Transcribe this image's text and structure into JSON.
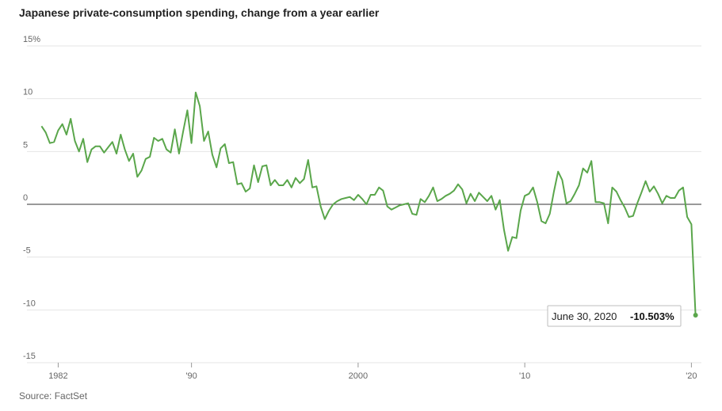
{
  "title": "Japanese private-consumption spending, change from a year earlier",
  "source": "Source: FactSet",
  "colors": {
    "line": "#5aa64b",
    "grid": "#e5e5e5",
    "zero": "#333333"
  },
  "tooltip": {
    "date": "June 30, 2020",
    "value": "-10.503%"
  },
  "chart_data": {
    "type": "line",
    "title": "Japanese private-consumption spending, change from a year earlier",
    "ylim": [
      -15,
      15
    ],
    "xlim": [
      1980.6,
      2020.6
    ],
    "y_ticks": [
      {
        "value": 15,
        "label": "15%"
      },
      {
        "value": 10,
        "label": "10"
      },
      {
        "value": 5,
        "label": "5"
      },
      {
        "value": 0,
        "label": "0"
      },
      {
        "value": -5,
        "label": "-5"
      },
      {
        "value": -10,
        "label": "-10"
      },
      {
        "value": -15,
        "label": "-15"
      }
    ],
    "x_ticks": [
      {
        "value": 1982,
        "label": "1982"
      },
      {
        "value": 1990,
        "label": "'90"
      },
      {
        "value": 2000,
        "label": "2000"
      },
      {
        "value": 2010,
        "label": "'10"
      },
      {
        "value": 2020,
        "label": "'20"
      }
    ],
    "grid": true,
    "x": [
      1981.0,
      1981.25,
      1981.5,
      1981.75,
      1982.0,
      1982.25,
      1982.5,
      1982.75,
      1983.0,
      1983.25,
      1983.5,
      1983.75,
      1984.0,
      1984.25,
      1984.5,
      1984.75,
      1985.0,
      1985.25,
      1985.5,
      1985.75,
      1986.0,
      1986.25,
      1986.5,
      1986.75,
      1987.0,
      1987.25,
      1987.5,
      1987.75,
      1988.0,
      1988.25,
      1988.5,
      1988.75,
      1989.0,
      1989.25,
      1989.5,
      1989.75,
      1990.0,
      1990.25,
      1990.5,
      1990.75,
      1991.0,
      1991.25,
      1991.5,
      1991.75,
      1992.0,
      1992.25,
      1992.5,
      1992.75,
      1993.0,
      1993.25,
      1993.5,
      1993.75,
      1994.0,
      1994.25,
      1994.5,
      1994.75,
      1995.0,
      1995.25,
      1995.5,
      1995.75,
      1996.0,
      1996.25,
      1996.5,
      1996.75,
      1997.0,
      1997.25,
      1997.5,
      1997.75,
      1998.0,
      1998.25,
      1998.5,
      1998.75,
      1999.0,
      1999.25,
      1999.5,
      1999.75,
      2000.0,
      2000.25,
      2000.5,
      2000.75,
      2001.0,
      2001.25,
      2001.5,
      2001.75,
      2002.0,
      2002.25,
      2002.5,
      2002.75,
      2003.0,
      2003.25,
      2003.5,
      2003.75,
      2004.0,
      2004.25,
      2004.5,
      2004.75,
      2005.0,
      2005.25,
      2005.5,
      2005.75,
      2006.0,
      2006.25,
      2006.5,
      2006.75,
      2007.0,
      2007.25,
      2007.5,
      2007.75,
      2008.0,
      2008.25,
      2008.5,
      2008.75,
      2009.0,
      2009.25,
      2009.5,
      2009.75,
      2010.0,
      2010.25,
      2010.5,
      2010.75,
      2011.0,
      2011.25,
      2011.5,
      2011.75,
      2012.0,
      2012.25,
      2012.5,
      2012.75,
      2013.0,
      2013.25,
      2013.5,
      2013.75,
      2014.0,
      2014.25,
      2014.5,
      2014.75,
      2015.0,
      2015.25,
      2015.5,
      2015.75,
      2016.0,
      2016.25,
      2016.5,
      2016.75,
      2017.0,
      2017.25,
      2017.5,
      2017.75,
      2018.0,
      2018.25,
      2018.5,
      2018.75,
      2019.0,
      2019.25,
      2019.5,
      2019.75,
      2020.0,
      2020.25
    ],
    "series": [
      {
        "values": [
          7.4,
          6.8,
          5.8,
          5.9,
          7.0,
          7.6,
          6.6,
          8.1,
          6.0,
          5.0,
          6.2,
          4.0,
          5.2,
          5.5,
          5.5,
          4.9,
          5.4,
          5.9,
          4.8,
          6.6,
          5.2,
          4.1,
          4.8,
          2.6,
          3.2,
          4.3,
          4.5,
          6.3,
          6.0,
          6.2,
          5.2,
          4.9,
          7.1,
          4.8,
          6.9,
          8.9,
          5.8,
          10.6,
          9.3,
          6.0,
          6.9,
          4.7,
          3.5,
          5.3,
          5.7,
          3.9,
          4.0,
          1.9,
          2.0,
          1.2,
          1.5,
          3.7,
          2.1,
          3.6,
          3.7,
          1.8,
          2.3,
          1.8,
          1.8,
          2.3,
          1.6,
          2.5,
          2.0,
          2.4,
          4.2,
          1.6,
          1.7,
          -0.2,
          -1.4,
          -0.6,
          0.0,
          0.3,
          0.5,
          0.6,
          0.7,
          0.4,
          0.9,
          0.5,
          0.0,
          0.9,
          0.9,
          1.6,
          1.3,
          -0.2,
          -0.5,
          -0.3,
          -0.1,
          0.0,
          0.1,
          -0.9,
          -1.0,
          0.5,
          0.2,
          0.8,
          1.6,
          0.3,
          0.5,
          0.8,
          1.0,
          1.3,
          1.9,
          1.4,
          0.1,
          1.0,
          0.3,
          1.1,
          0.7,
          0.3,
          0.8,
          -0.5,
          0.4,
          -2.4,
          -4.4,
          -3.1,
          -3.2,
          -0.6,
          0.8,
          1.0,
          1.6,
          0.2,
          -1.6,
          -1.8,
          -0.9,
          1.2,
          3.1,
          2.3,
          0.1,
          0.3,
          1.0,
          1.8,
          3.4,
          3.0,
          4.1,
          0.2,
          0.2,
          0.1,
          -1.8,
          1.6,
          1.2,
          0.4,
          -0.3,
          -1.2,
          -1.1,
          0.1,
          1.1,
          2.2,
          1.2,
          1.7,
          1.0,
          0.1,
          0.8,
          0.6,
          0.6,
          1.3,
          1.6,
          -1.2,
          -1.9,
          -10.503
        ]
      }
    ]
  }
}
